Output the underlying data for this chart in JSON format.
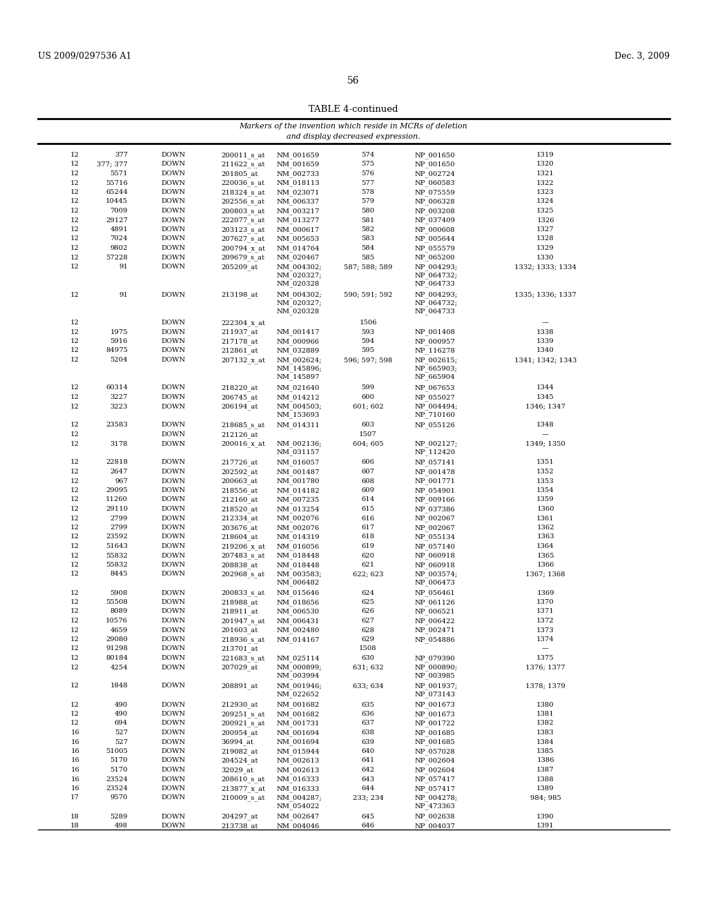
{
  "header_left": "US 2009/0297536 A1",
  "header_right": "Dec. 3, 2009",
  "page_number": "56",
  "table_title": "TABLE 4-continued",
  "table_subtitle1": "Markers of the invention which reside in MCRs of deletion",
  "table_subtitle2": "and display decreased expression.",
  "bg_color": "#ffffff",
  "text_color": "#000000",
  "font_size": 7.2,
  "rows": [
    [
      "12",
      "377",
      "DOWN",
      "200011_s_at",
      "NM_001659",
      "574",
      "NP_001650",
      "1319"
    ],
    [
      "12",
      "377; 377",
      "DOWN",
      "211622_s_at",
      "NM_001659",
      "575",
      "NP_001650",
      "1320"
    ],
    [
      "12",
      "5571",
      "DOWN",
      "201805_at",
      "NM_002733",
      "576",
      "NP_002724",
      "1321"
    ],
    [
      "12",
      "55716",
      "DOWN",
      "220036_s_at",
      "NM_018113",
      "577",
      "NP_060583",
      "1322"
    ],
    [
      "12",
      "65244",
      "DOWN",
      "218324_s_at",
      "NM_023071",
      "578",
      "NP_075559",
      "1323"
    ],
    [
      "12",
      "10445",
      "DOWN",
      "202556_s_at",
      "NM_006337",
      "579",
      "NP_006328",
      "1324"
    ],
    [
      "12",
      "7009",
      "DOWN",
      "200803_s_at",
      "NM_003217",
      "580",
      "NP_003208",
      "1325"
    ],
    [
      "12",
      "29127",
      "DOWN",
      "222077_s_at",
      "NM_013277",
      "581",
      "NP_037409",
      "1326"
    ],
    [
      "12",
      "4891",
      "DOWN",
      "203123_s_at",
      "NM_000617",
      "582",
      "NP_000608",
      "1327"
    ],
    [
      "12",
      "7024",
      "DOWN",
      "207627_s_at",
      "NM_005653",
      "583",
      "NP_005644",
      "1328"
    ],
    [
      "12",
      "9802",
      "DOWN",
      "200794_x_at",
      "NM_014764",
      "584",
      "NP_055579",
      "1329"
    ],
    [
      "12",
      "57228",
      "DOWN",
      "209679_s_at",
      "NM_020467",
      "585",
      "NP_065200",
      "1330"
    ],
    [
      "12",
      "91",
      "DOWN",
      "205209_at",
      "NM_004302;\nNM_020327;\nNM_020328",
      "587; 588; 589",
      "NP_004293;\nNP_064732;\nNP_064733",
      "1332; 1333; 1334"
    ],
    [
      "12",
      "91",
      "DOWN",
      "213198_at",
      "NM_004302;\nNM_020327;\nNM_020328",
      "590; 591; 592",
      "NP_004293;\nNP_064732;\nNP_064733",
      "1335; 1336; 1337"
    ],
    [
      "12",
      "",
      "DOWN",
      "222304_x_at",
      "",
      "1506",
      "",
      "—"
    ],
    [
      "12",
      "1975",
      "DOWN",
      "211937_at",
      "NM_001417",
      "593",
      "NP_001408",
      "1338"
    ],
    [
      "12",
      "5916",
      "DOWN",
      "217178_at",
      "NM_000966",
      "594",
      "NP_000957",
      "1339"
    ],
    [
      "12",
      "84975",
      "DOWN",
      "212861_at",
      "NM_032889",
      "595",
      "NP_116278",
      "1340"
    ],
    [
      "12",
      "5204",
      "DOWN",
      "207132_x_at",
      "NM_002624;\nNM_145896;\nNM_145897",
      "596; 597; 598",
      "NP_002615;\nNP_665903;\nNP_665904",
      "1341; 1342; 1343"
    ],
    [
      "12",
      "60314",
      "DOWN",
      "218220_at",
      "NM_021640",
      "599",
      "NP_067653",
      "1344"
    ],
    [
      "12",
      "3227",
      "DOWN",
      "206745_at",
      "NM_014212",
      "600",
      "NP_055027",
      "1345"
    ],
    [
      "12",
      "3223",
      "DOWN",
      "206194_at",
      "NM_004503;\nNM_153693",
      "601; 602",
      "NP_004494;\nNP_710160",
      "1346; 1347"
    ],
    [
      "12",
      "23583",
      "DOWN",
      "218685_s_at",
      "NM_014311",
      "603",
      "NP_055126",
      "1348"
    ],
    [
      "12",
      "",
      "DOWN",
      "212126_at",
      "",
      "1507",
      "",
      "—"
    ],
    [
      "12",
      "3178",
      "DOWN",
      "200016_x_at",
      "NM_002136;\nNM_031157",
      "604; 605",
      "NP_002127;\nNP_112420",
      "1349; 1350"
    ],
    [
      "12",
      "22818",
      "DOWN",
      "217726_at",
      "NM_016057",
      "606",
      "NP_057141",
      "1351"
    ],
    [
      "12",
      "2647",
      "DOWN",
      "202592_at",
      "NM_001487",
      "607",
      "NP_001478",
      "1352"
    ],
    [
      "12",
      "967",
      "DOWN",
      "200663_at",
      "NM_001780",
      "608",
      "NP_001771",
      "1353"
    ],
    [
      "12",
      "29095",
      "DOWN",
      "218556_at",
      "NM_014182",
      "609",
      "NP_054901",
      "1354"
    ],
    [
      "12",
      "11260",
      "DOWN",
      "212160_at",
      "NM_007235",
      "614",
      "NP_009166",
      "1359"
    ],
    [
      "12",
      "29110",
      "DOWN",
      "218520_at",
      "NM_013254",
      "615",
      "NP_037386",
      "1360"
    ],
    [
      "12",
      "2799",
      "DOWN",
      "212334_at",
      "NM_002076",
      "616",
      "NP_002067",
      "1361"
    ],
    [
      "12",
      "2799",
      "DOWN",
      "203676_at",
      "NM_002076",
      "617",
      "NP_002067",
      "1362"
    ],
    [
      "12",
      "23592",
      "DOWN",
      "218604_at",
      "NM_014319",
      "618",
      "NP_055134",
      "1363"
    ],
    [
      "12",
      "51643",
      "DOWN",
      "219206_x_at",
      "NM_016056",
      "619",
      "NP_057140",
      "1364"
    ],
    [
      "12",
      "55832",
      "DOWN",
      "207483_s_at",
      "NM_018448",
      "620",
      "NP_060918",
      "1365"
    ],
    [
      "12",
      "55832",
      "DOWN",
      "208838_at",
      "NM_018448",
      "621",
      "NP_060918",
      "1366"
    ],
    [
      "12",
      "8445",
      "DOWN",
      "202968_s_at",
      "NM_003583;\nNM_006482",
      "622; 623",
      "NP_003574;\nNP_006473",
      "1367; 1368"
    ],
    [
      "12",
      "5908",
      "DOWN",
      "200833_s_at",
      "NM_015646",
      "624",
      "NP_056461",
      "1369"
    ],
    [
      "12",
      "55508",
      "DOWN",
      "218988_at",
      "NM_018656",
      "625",
      "NP_061126",
      "1370"
    ],
    [
      "12",
      "8089",
      "DOWN",
      "218911_at",
      "NM_006530",
      "626",
      "NP_006521",
      "1371"
    ],
    [
      "12",
      "10576",
      "DOWN",
      "201947_s_at",
      "NM_006431",
      "627",
      "NP_006422",
      "1372"
    ],
    [
      "12",
      "4659",
      "DOWN",
      "201603_at",
      "NM_002480",
      "628",
      "NP_002471",
      "1373"
    ],
    [
      "12",
      "29080",
      "DOWN",
      "218936_s_at",
      "NM_014167",
      "629",
      "NP_054886",
      "1374"
    ],
    [
      "12",
      "91298",
      "DOWN",
      "213701_at",
      "",
      "1508",
      "",
      "—"
    ],
    [
      "12",
      "80184",
      "DOWN",
      "221683_s_at",
      "NM_025114",
      "630",
      "NP_079390",
      "1375"
    ],
    [
      "12",
      "4254",
      "DOWN",
      "207029_at",
      "NM_000899;\nNM_003994",
      "631; 632",
      "NP_000890;\nNP_003985",
      "1376; 1377"
    ],
    [
      "12",
      "1848",
      "DOWN",
      "208891_at",
      "NM_001946;\nNM_022652",
      "633; 634",
      "NP_001937;\nNP_073143",
      "1378; 1379"
    ],
    [
      "12",
      "490",
      "DOWN",
      "212930_at",
      "NM_001682",
      "635",
      "NP_001673",
      "1380"
    ],
    [
      "12",
      "490",
      "DOWN",
      "209251_s_at",
      "NM_001682",
      "636",
      "NP_001673",
      "1381"
    ],
    [
      "12",
      "694",
      "DOWN",
      "200921_s_at",
      "NM_001731",
      "637",
      "NP_001722",
      "1382"
    ],
    [
      "16",
      "527",
      "DOWN",
      "200954_at",
      "NM_001694",
      "638",
      "NP_001685",
      "1383"
    ],
    [
      "16",
      "527",
      "DOWN",
      "36994_at",
      "NM_001694",
      "639",
      "NP_001685",
      "1384"
    ],
    [
      "16",
      "51005",
      "DOWN",
      "219082_at",
      "NM_015944",
      "640",
      "NP_057028",
      "1385"
    ],
    [
      "16",
      "5170",
      "DOWN",
      "204524_at",
      "NM_002613",
      "641",
      "NP_002604",
      "1386"
    ],
    [
      "16",
      "5170",
      "DOWN",
      "32029_at",
      "NM_002613",
      "642",
      "NP_002604",
      "1387"
    ],
    [
      "16",
      "23524",
      "DOWN",
      "208610_s_at",
      "NM_016333",
      "643",
      "NP_057417",
      "1388"
    ],
    [
      "16",
      "23524",
      "DOWN",
      "213877_x_at",
      "NM_016333",
      "644",
      "NP_057417",
      "1389"
    ],
    [
      "17",
      "9570",
      "DOWN",
      "210009_s_at",
      "NM_004287;\nNM_054022",
      "233; 234",
      "NP_004278;\nNP_473363",
      "984; 985"
    ],
    [
      "18",
      "5289",
      "DOWN",
      "204297_at",
      "NM_002647",
      "645",
      "NP_002638",
      "1390"
    ],
    [
      "18",
      "498",
      "DOWN",
      "213738_at",
      "NM_004046",
      "646",
      "NP_004037",
      "1391"
    ]
  ]
}
